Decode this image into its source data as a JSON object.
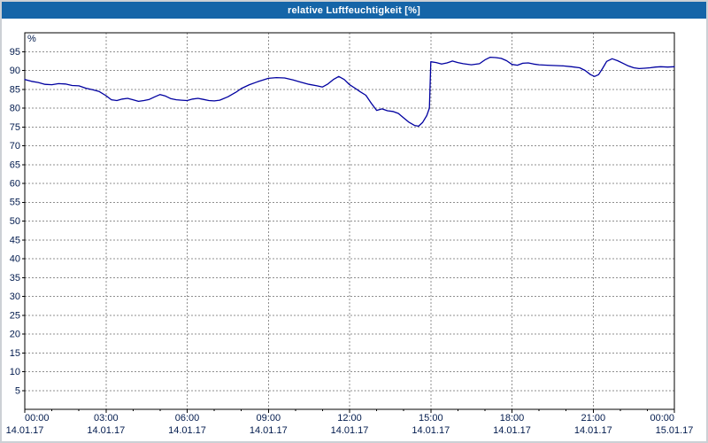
{
  "window": {
    "title": "relative Luftfeuchtigkeit [%]",
    "title_bar_color": "#1565a8",
    "title_text_color": "#ffffff"
  },
  "chart_data": {
    "type": "line",
    "title": "relative Luftfeuchtigkeit [%]",
    "xlabel": "",
    "ylabel": "%",
    "xlim": [
      0,
      24
    ],
    "ylim": [
      0,
      100
    ],
    "grid": true,
    "legend": "none",
    "line_color": "#0000a0",
    "grid_color": "#8f8f8f",
    "axis_color": "#000000",
    "label_color": "#001a4d",
    "yticks": [
      5,
      10,
      15,
      20,
      25,
      30,
      35,
      40,
      45,
      50,
      55,
      60,
      65,
      70,
      75,
      80,
      85,
      90,
      95
    ],
    "xticks": [
      {
        "h": 0,
        "time": "00:00",
        "date": "14.01.17"
      },
      {
        "h": 3,
        "time": "03:00",
        "date": "14.01.17"
      },
      {
        "h": 6,
        "time": "06:00",
        "date": "14.01.17"
      },
      {
        "h": 9,
        "time": "09:00",
        "date": "14.01.17"
      },
      {
        "h": 12,
        "time": "12:00",
        "date": "14.01.17"
      },
      {
        "h": 15,
        "time": "15:00",
        "date": "14.01.17"
      },
      {
        "h": 18,
        "time": "18:00",
        "date": "14.01.17"
      },
      {
        "h": 21,
        "time": "21:00",
        "date": "14.01.17"
      },
      {
        "h": 24,
        "time": "00:00",
        "date": "15.01.17"
      }
    ],
    "minor_x_step_hours": 1,
    "series": [
      {
        "name": "relative Luftfeuchtigkeit",
        "unit": "%",
        "points": [
          [
            0,
            87.6
          ],
          [
            0.25,
            87.1
          ],
          [
            0.5,
            86.8
          ],
          [
            0.75,
            86.3
          ],
          [
            1,
            86.2
          ],
          [
            1.25,
            86.5
          ],
          [
            1.5,
            86.4
          ],
          [
            1.75,
            86
          ],
          [
            2,
            85.9
          ],
          [
            2.25,
            85.3
          ],
          [
            2.5,
            84.9
          ],
          [
            2.75,
            84.4
          ],
          [
            3,
            83.3
          ],
          [
            3.2,
            82.2
          ],
          [
            3.4,
            82
          ],
          [
            3.6,
            82.4
          ],
          [
            3.8,
            82.6
          ],
          [
            4,
            82.2
          ],
          [
            4.2,
            81.8
          ],
          [
            4.4,
            82
          ],
          [
            4.6,
            82.3
          ],
          [
            4.8,
            83
          ],
          [
            5,
            83.6
          ],
          [
            5.2,
            83.2
          ],
          [
            5.4,
            82.5
          ],
          [
            5.6,
            82.2
          ],
          [
            5.8,
            82.1
          ],
          [
            6,
            82
          ],
          [
            6.2,
            82.4
          ],
          [
            6.4,
            82.6
          ],
          [
            6.6,
            82.3
          ],
          [
            6.8,
            82
          ],
          [
            7,
            81.9
          ],
          [
            7.2,
            82.1
          ],
          [
            7.5,
            83
          ],
          [
            7.8,
            84.2
          ],
          [
            8,
            85.2
          ],
          [
            8.3,
            86.2
          ],
          [
            8.6,
            87
          ],
          [
            9,
            87.9
          ],
          [
            9.3,
            88.1
          ],
          [
            9.6,
            88
          ],
          [
            9.9,
            87.5
          ],
          [
            10.2,
            86.9
          ],
          [
            10.5,
            86.3
          ],
          [
            10.8,
            85.9
          ],
          [
            11,
            85.6
          ],
          [
            11.2,
            86.4
          ],
          [
            11.4,
            87.6
          ],
          [
            11.6,
            88.4
          ],
          [
            11.8,
            87.6
          ],
          [
            12,
            86.2
          ],
          [
            12.2,
            85.3
          ],
          [
            12.4,
            84.3
          ],
          [
            12.6,
            83.4
          ],
          [
            12.8,
            81.3
          ],
          [
            13,
            79.4
          ],
          [
            13.2,
            79.8
          ],
          [
            13.4,
            79.3
          ],
          [
            13.6,
            79.1
          ],
          [
            13.8,
            78.6
          ],
          [
            14,
            77.4
          ],
          [
            14.2,
            76.2
          ],
          [
            14.4,
            75.4
          ],
          [
            14.55,
            75.2
          ],
          [
            14.7,
            76.2
          ],
          [
            14.85,
            78
          ],
          [
            14.95,
            80
          ],
          [
            15,
            92.3
          ],
          [
            15.2,
            92.1
          ],
          [
            15.4,
            91.7
          ],
          [
            15.6,
            92
          ],
          [
            15.8,
            92.5
          ],
          [
            16,
            92.1
          ],
          [
            16.2,
            91.8
          ],
          [
            16.5,
            91.5
          ],
          [
            16.8,
            91.8
          ],
          [
            17,
            92.8
          ],
          [
            17.2,
            93.5
          ],
          [
            17.4,
            93.4
          ],
          [
            17.6,
            93.2
          ],
          [
            17.8,
            92.6
          ],
          [
            18,
            91.6
          ],
          [
            18.2,
            91.4
          ],
          [
            18.4,
            91.9
          ],
          [
            18.6,
            92
          ],
          [
            18.8,
            91.7
          ],
          [
            19,
            91.5
          ],
          [
            19.3,
            91.4
          ],
          [
            19.6,
            91.3
          ],
          [
            19.9,
            91.2
          ],
          [
            20.2,
            91
          ],
          [
            20.5,
            90.7
          ],
          [
            20.7,
            90
          ],
          [
            20.9,
            88.9
          ],
          [
            21.05,
            88.4
          ],
          [
            21.2,
            88.9
          ],
          [
            21.35,
            90.6
          ],
          [
            21.5,
            92.4
          ],
          [
            21.7,
            93.1
          ],
          [
            21.9,
            92.6
          ],
          [
            22.1,
            91.9
          ],
          [
            22.3,
            91.2
          ],
          [
            22.5,
            90.7
          ],
          [
            22.7,
            90.5
          ],
          [
            22.9,
            90.6
          ],
          [
            23.1,
            90.7
          ],
          [
            23.3,
            90.9
          ],
          [
            23.5,
            91
          ],
          [
            23.75,
            90.9
          ],
          [
            24,
            91
          ]
        ]
      }
    ]
  }
}
